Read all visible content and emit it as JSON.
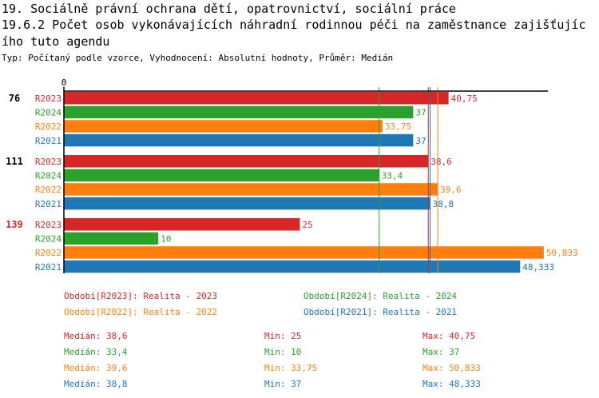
{
  "title_line1": "19. Sociálně právní ochrana dětí, opatrovnictví, sociální práce",
  "title_line2": "19.6.2 Počet osob vykonávajících náhradní rodinnou péči na zaměstnance zajišťujíc",
  "title_line3": "ího tuto agendu",
  "subtitle": "Typ: Počítaný podle vzorce, Vyhodnocení: Absolutní hodnoty, Průměr: Medián",
  "colors": {
    "R2023": "#d62728",
    "R2024": "#2ca02c",
    "R2022": "#ff7f0e",
    "R2021": "#1f77b4"
  },
  "chart_data": {
    "type": "bar",
    "orientation": "horizontal",
    "x_tick_labels": [
      "0"
    ],
    "xlim": [
      0,
      51
    ],
    "groups": [
      {
        "label": "76",
        "label_color": "#000000",
        "bars": [
          {
            "series": "R2023",
            "value": 40.75,
            "label": "40,75"
          },
          {
            "series": "R2024",
            "value": 37,
            "label": "37"
          },
          {
            "series": "R2022",
            "value": 33.75,
            "label": "33,75"
          },
          {
            "series": "R2021",
            "value": 37,
            "label": "37"
          }
        ]
      },
      {
        "label": "111",
        "label_color": "#000000",
        "bars": [
          {
            "series": "R2023",
            "value": 38.6,
            "label": "38,6"
          },
          {
            "series": "R2024",
            "value": 33.4,
            "label": "33,4"
          },
          {
            "series": "R2022",
            "value": 39.6,
            "label": "39,6"
          },
          {
            "series": "R2021",
            "value": 38.8,
            "label": "38,8"
          }
        ]
      },
      {
        "label": "139",
        "label_color": "#d62728",
        "bars": [
          {
            "series": "R2023",
            "value": 25,
            "label": "25"
          },
          {
            "series": "R2024",
            "value": 10,
            "label": "10"
          },
          {
            "series": "R2022",
            "value": 50.833,
            "label": "50,833"
          },
          {
            "series": "R2021",
            "value": 48.333,
            "label": "48,333"
          }
        ]
      }
    ],
    "median_lines": [
      {
        "series": "R2023",
        "value": 38.6
      },
      {
        "series": "R2024",
        "value": 33.4
      },
      {
        "series": "R2022",
        "value": 39.6
      },
      {
        "series": "R2021",
        "value": 38.8
      }
    ]
  },
  "legend": [
    {
      "series": "R2023",
      "text": "Období[R2023]: Realita - 2023"
    },
    {
      "series": "R2024",
      "text": "Období[R2024]: Realita - 2024"
    },
    {
      "series": "R2022",
      "text": "Období[R2022]: Realita - 2022"
    },
    {
      "series": "R2021",
      "text": "Období[R2021]: Realita - 2021"
    }
  ],
  "stats": [
    {
      "series": "R2023",
      "median": "Medián: 38,6",
      "min": "Min: 25",
      "max": "Max: 40,75"
    },
    {
      "series": "R2024",
      "median": "Medián: 33,4",
      "min": "Min: 10",
      "max": "Max: 37"
    },
    {
      "series": "R2022",
      "median": "Medián: 39,6",
      "min": "Min: 33,75",
      "max": "Max: 50,833"
    },
    {
      "series": "R2021",
      "median": "Medián: 38,8",
      "min": "Min: 37",
      "max": "Max: 48,333"
    }
  ]
}
